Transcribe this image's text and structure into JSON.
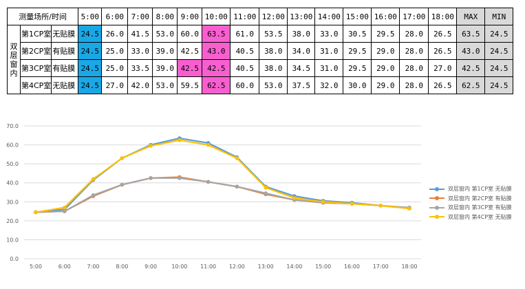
{
  "table": {
    "header_label": "测量场所/时间",
    "group_label": "双层窗内",
    "times": [
      "5:00",
      "6:00",
      "7:00",
      "8:00",
      "9:00",
      "10:00",
      "11:00",
      "12:00",
      "13:00",
      "14:00",
      "15:00",
      "16:00",
      "17:00",
      "18:00"
    ],
    "max_label": "MAX",
    "min_label": "MIN",
    "rows": [
      {
        "room": "第1CP室",
        "film": "无贴膜",
        "values": [
          "24.5",
          "26.0",
          "41.5",
          "53.0",
          "60.0",
          "63.5",
          "61.0",
          "53.5",
          "38.0",
          "33.0",
          "30.5",
          "29.5",
          "28.0",
          "26.5"
        ],
        "max": "63.5",
        "min": "24.5"
      },
      {
        "room": "第2CP室",
        "film": "有贴膜",
        "values": [
          "24.5",
          "25.0",
          "33.0",
          "39.0",
          "42.5",
          "43.0",
          "40.5",
          "38.0",
          "34.0",
          "31.0",
          "29.5",
          "29.0",
          "28.0",
          "26.5"
        ],
        "max": "43.0",
        "min": "24.5"
      },
      {
        "room": "第3CP室",
        "film": "有贴膜",
        "values": [
          "24.5",
          "25.0",
          "33.5",
          "39.0",
          "42.5",
          "42.5",
          "40.5",
          "38.0",
          "34.5",
          "31.0",
          "29.5",
          "29.0",
          "28.0",
          "27.0"
        ],
        "max": "42.5",
        "min": "24.5"
      },
      {
        "room": "第4CP室",
        "film": "无贴膜",
        "values": [
          "24.5",
          "27.0",
          "42.0",
          "53.0",
          "59.5",
          "62.5",
          "60.0",
          "53.0",
          "37.5",
          "32.0",
          "30.0",
          "29.0",
          "28.0",
          "26.5"
        ],
        "max": "62.5",
        "min": "24.5"
      }
    ],
    "highlights": [
      {
        "row": 0,
        "col": 0,
        "color": "#1aa7e6"
      },
      {
        "row": 1,
        "col": 0,
        "color": "#1aa7e6"
      },
      {
        "row": 2,
        "col": 0,
        "color": "#1aa7e6"
      },
      {
        "row": 3,
        "col": 0,
        "color": "#1aa7e6"
      },
      {
        "row": 0,
        "col": 5,
        "color": "#f75fcf"
      },
      {
        "row": 1,
        "col": 5,
        "color": "#f75fcf"
      },
      {
        "row": 2,
        "col": 4,
        "color": "#f75fcf"
      },
      {
        "row": 2,
        "col": 5,
        "color": "#f75fcf"
      },
      {
        "row": 3,
        "col": 5,
        "color": "#f75fcf"
      }
    ]
  },
  "chart_data": {
    "type": "line",
    "x": [
      "5:00",
      "6:00",
      "7:00",
      "8:00",
      "9:00",
      "10:00",
      "11:00",
      "12:00",
      "13:00",
      "14:00",
      "15:00",
      "16:00",
      "17:00",
      "18:00"
    ],
    "ylim": [
      0,
      70
    ],
    "yticks": [
      "0.0",
      "10.0",
      "20.0",
      "30.0",
      "40.0",
      "50.0",
      "60.0",
      "70.0"
    ],
    "grid": true,
    "legend_position": "right",
    "series": [
      {
        "name": "双层窗内 第1CP室 无贴膜",
        "color": "#5b9bd5",
        "values": [
          24.5,
          26.0,
          41.5,
          53.0,
          60.0,
          63.5,
          61.0,
          53.5,
          38.0,
          33.0,
          30.5,
          29.5,
          28.0,
          26.5
        ]
      },
      {
        "name": "双层窗内 第2CP室 有贴膜",
        "color": "#ed7d31",
        "values": [
          24.5,
          25.0,
          33.0,
          39.0,
          42.5,
          43.0,
          40.5,
          38.0,
          34.0,
          31.0,
          29.5,
          29.0,
          28.0,
          26.5
        ]
      },
      {
        "name": "双层窗内 第3CP室 有贴膜",
        "color": "#a5a5a5",
        "values": [
          24.5,
          25.0,
          33.5,
          39.0,
          42.5,
          42.5,
          40.5,
          38.0,
          34.5,
          31.0,
          29.5,
          29.0,
          28.0,
          27.0
        ]
      },
      {
        "name": "双层窗内 第4CP室 无贴膜",
        "color": "#ffc000",
        "values": [
          24.5,
          27.0,
          42.0,
          53.0,
          59.5,
          62.5,
          60.0,
          53.0,
          37.5,
          32.0,
          30.0,
          29.0,
          28.0,
          26.5
        ]
      }
    ]
  }
}
